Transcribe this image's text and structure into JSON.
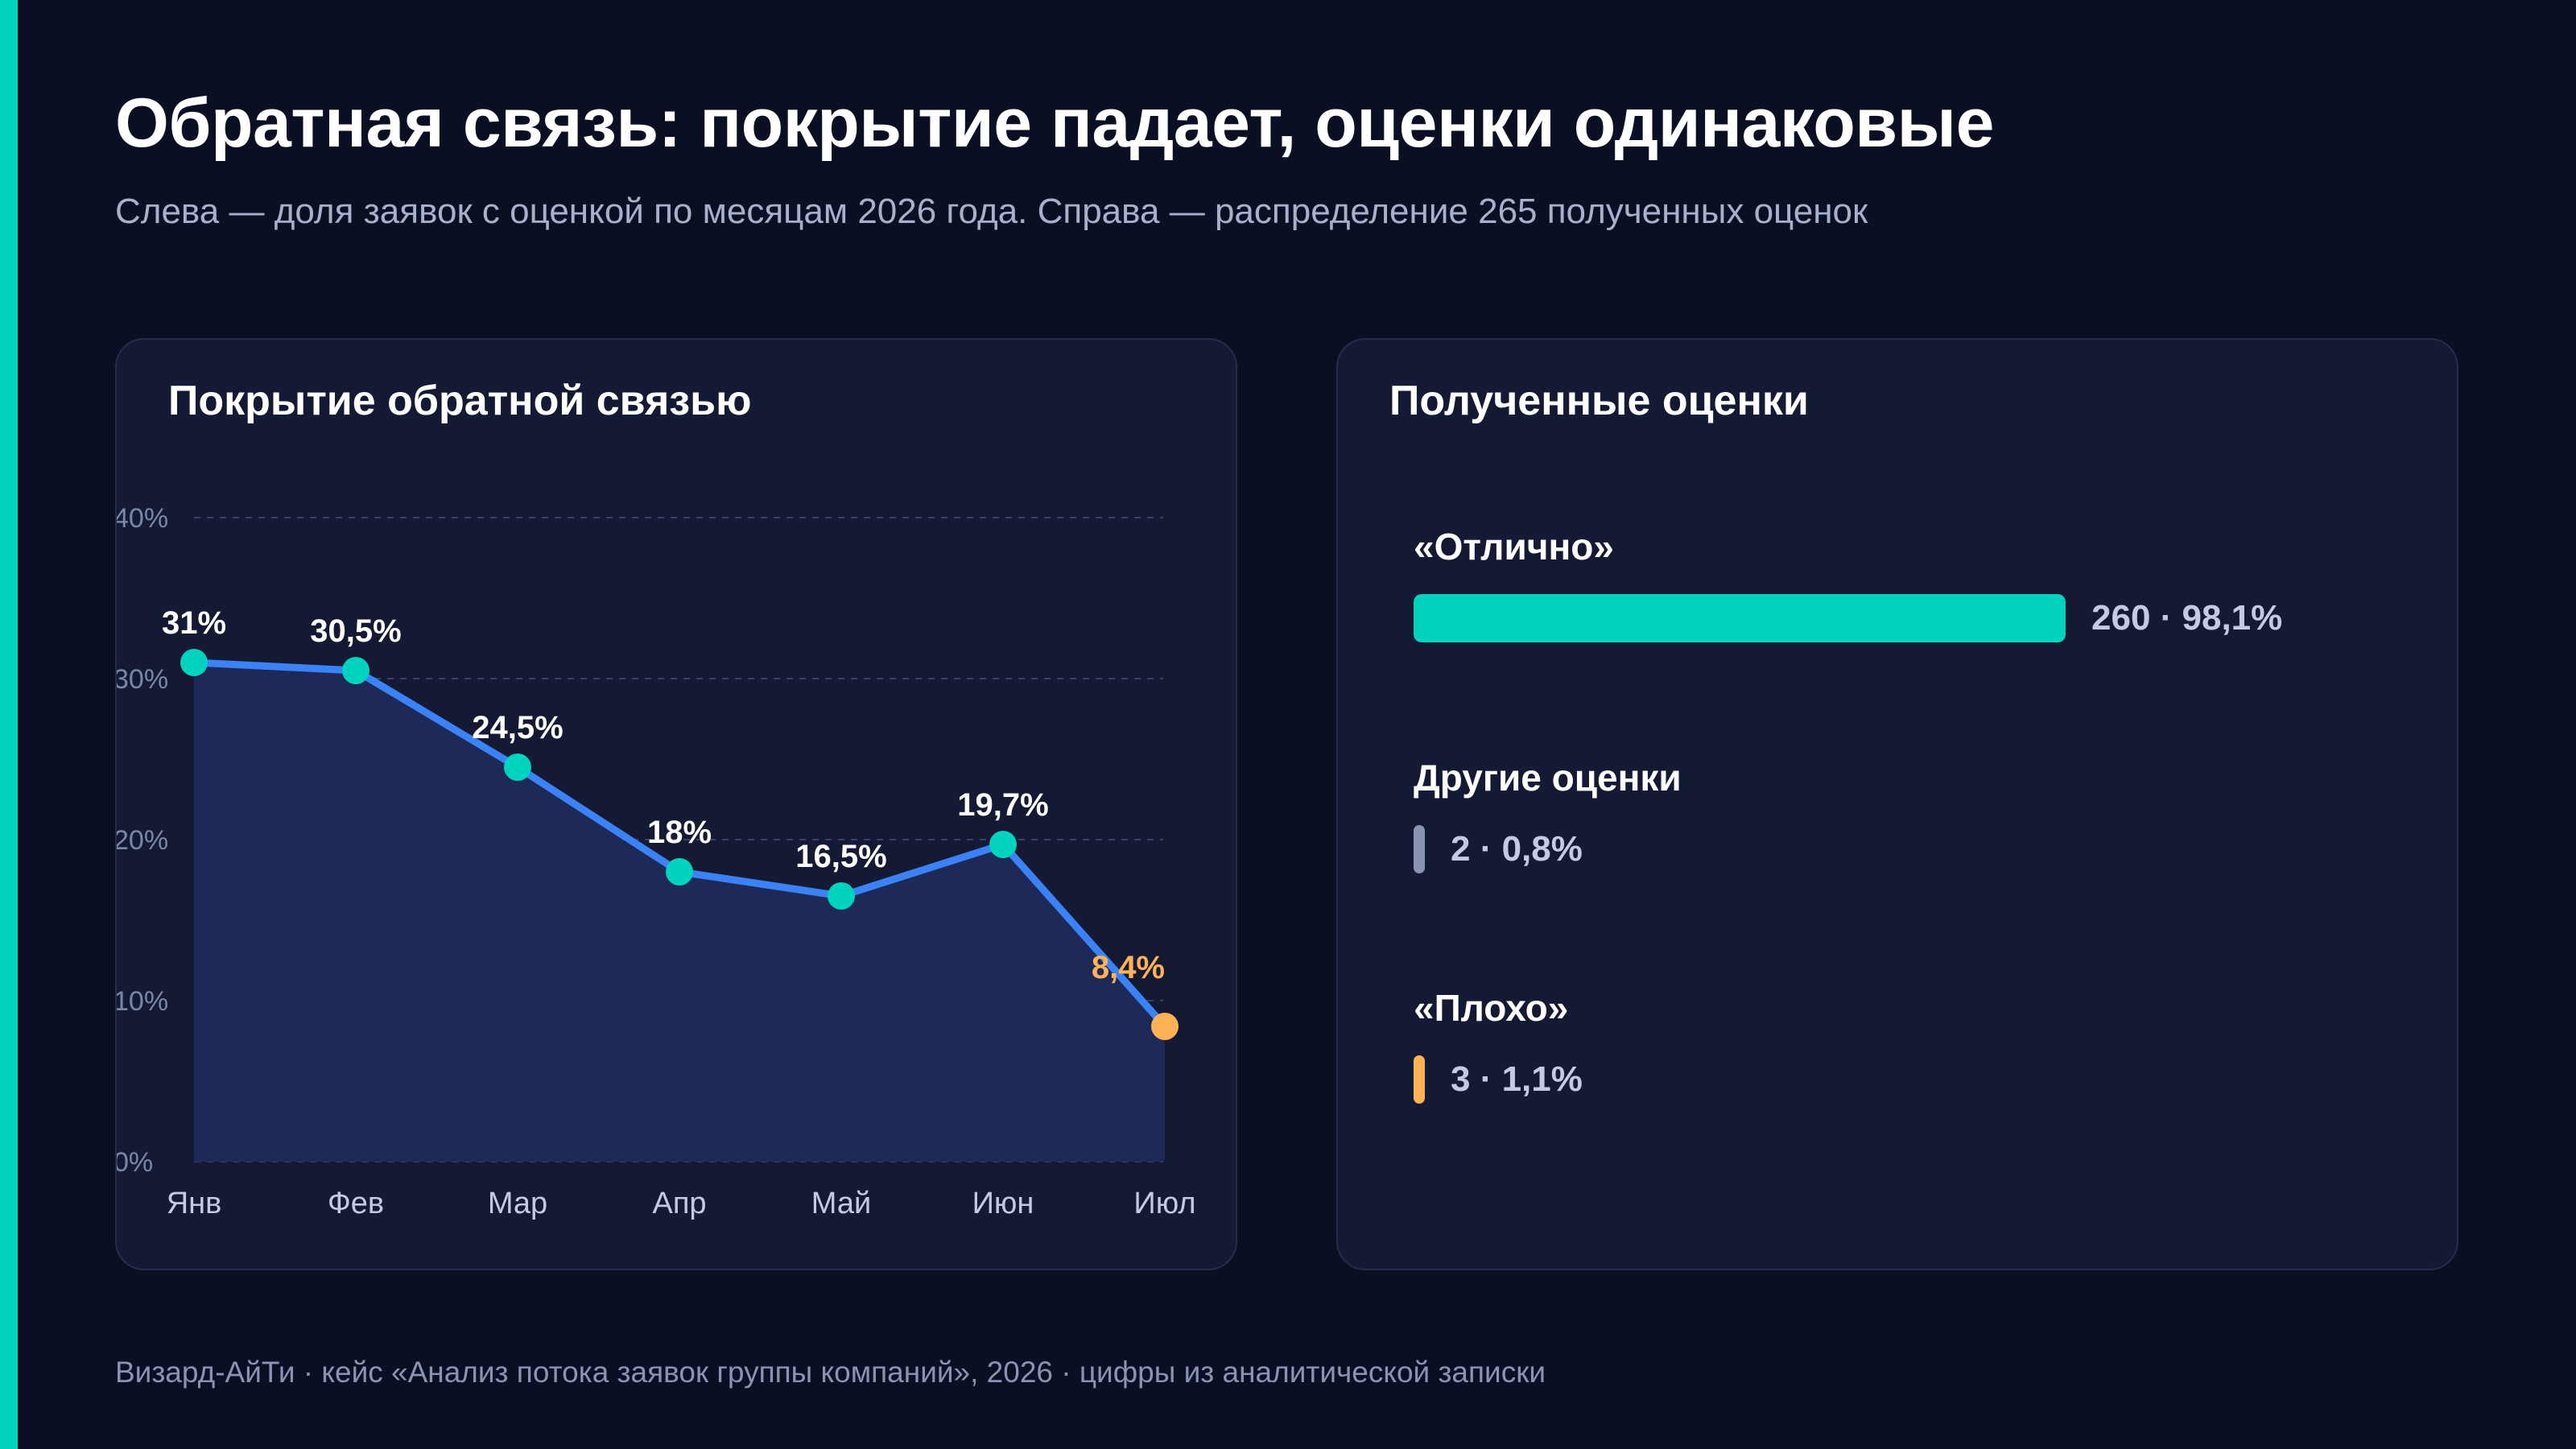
{
  "page": {
    "title": "Обратная связь: покрытие падает, оценки одинаковые",
    "subtitle": "Слева — доля заявок с оценкой по месяцам 2026 года. Справа — распределение 265 полученных оценок",
    "footer": "Визард-АйТи · кейс «Анализ потока заявок группы компаний», 2026 · цифры из аналитической записки"
  },
  "colors": {
    "background": "#0a0f24",
    "card": "#141a33",
    "accent": "#00d4be",
    "line": "#3b82f6",
    "area": "#1e2a5a",
    "highlight": "#ffb155",
    "neutral": "#8a93b1"
  },
  "chart_data": [
    {
      "type": "line",
      "title": "Покрытие обратной связью",
      "x": [
        "Янв",
        "Фев",
        "Мар",
        "Апр",
        "Май",
        "Июн",
        "Июл"
      ],
      "values": [
        31,
        30.5,
        24.5,
        18,
        16.5,
        19.7,
        8.4
      ],
      "data_labels": [
        "31%",
        "30,5%",
        "24,5%",
        "18%",
        "16,5%",
        "19,7%",
        "8,4%"
      ],
      "highlight_index": 6,
      "y_ticks": [
        0,
        10,
        20,
        30,
        40
      ],
      "y_tick_labels": [
        "0%",
        "10%",
        "20%",
        "30%",
        "40%"
      ],
      "ylim": [
        0,
        40
      ],
      "grid": true,
      "area_fill": true
    },
    {
      "type": "bar",
      "orientation": "horizontal",
      "title": "Полученные оценки",
      "categories": [
        "«Отлично»",
        "Другие оценки",
        "«Плохо»"
      ],
      "counts": [
        260,
        2,
        3
      ],
      "percents": [
        98.1,
        0.8,
        1.1
      ],
      "value_labels": [
        "260 · 98,1%",
        "2 · 0,8%",
        "3 · 1,1%"
      ],
      "colors": [
        "#00d4be",
        "#8a93b1",
        "#ffb155"
      ]
    }
  ]
}
